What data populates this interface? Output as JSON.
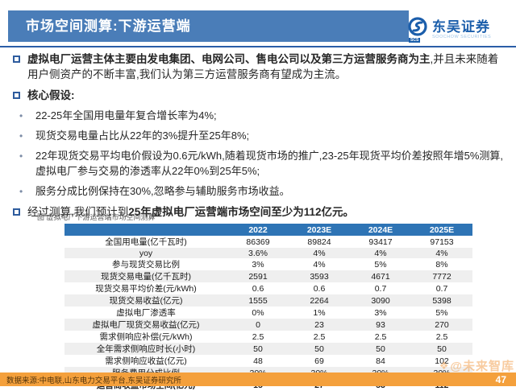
{
  "header": {
    "title": "市场空间测算:下游运营端",
    "logo": {
      "name": "东吴证券",
      "subtitle": "SOOCHOW SECURITIES",
      "badge": "SCS"
    }
  },
  "bullets": {
    "b1_bold": "虚拟电厂运营主体主要由发电集团、电网公司、售电公司以及第三方运营服务商为主",
    "b1_rest": ",并且未来随着用户侧资产的不断丰富,我们认为第三方运营服务商有望成为主流。",
    "b2": "核心假设:",
    "sub": [
      "22-25年全国用电量年复合增长率为4%;",
      "现货交易电量占比从22年的3%提升至25年8%;",
      "22年现货交易平均电价假设为0.6元/kWh,随着现货市场的推广,23-25年现货平均价差按照年增5%测算,虚拟电厂参与交易的渗透率从22年0%到25年5%;",
      "服务分成比例保持在30%,忽略参与辅助服务市场收益。"
    ],
    "b3_plain": "经过测算,我们预计到",
    "b3_bold": "25年虚拟电厂运营端市场空间至少为112亿元。"
  },
  "figure": {
    "caption": "图  虚拟电厂下游运营端市场空间测算"
  },
  "table": {
    "columns": [
      "",
      "2022",
      "2023E",
      "2024E",
      "2025E"
    ],
    "rows": [
      {
        "label": "全国用电量(亿千瓦时)",
        "values": [
          "86369",
          "89824",
          "93417",
          "97153"
        ],
        "bold": false
      },
      {
        "label": "yoy",
        "values": [
          "3.6%",
          "4%",
          "4%",
          "4%"
        ],
        "bold": false
      },
      {
        "label": "参与现货交易比例",
        "values": [
          "3%",
          "4%",
          "5%",
          "8%"
        ],
        "bold": false
      },
      {
        "label": "现货交易电量(亿千瓦时)",
        "values": [
          "2591",
          "3593",
          "4671",
          "7772"
        ],
        "bold": false
      },
      {
        "label": "现货交易平均价差(元/kWh)",
        "values": [
          "0.6",
          "0.6",
          "0.7",
          "0.7"
        ],
        "bold": false
      },
      {
        "label": "现货交易收益(亿元)",
        "values": [
          "1555",
          "2264",
          "3090",
          "5398"
        ],
        "bold": false
      },
      {
        "label": "虚拟电厂渗透率",
        "values": [
          "0%",
          "1%",
          "3%",
          "5%"
        ],
        "bold": false
      },
      {
        "label": "虚拟电厂现货交易收益(亿元)",
        "values": [
          "0",
          "23",
          "93",
          "270"
        ],
        "bold": false
      },
      {
        "label": "需求侧响应补偿(元/kWh)",
        "values": [
          "2.5",
          "2.5",
          "2.5",
          "2.5"
        ],
        "bold": false
      },
      {
        "label": "全年需求侧响应时长(小时)",
        "values": [
          "50",
          "50",
          "50",
          "50"
        ],
        "bold": false
      },
      {
        "label": "需求侧响应收益(亿元)",
        "values": [
          "48",
          "69",
          "84",
          "102"
        ],
        "bold": false
      },
      {
        "label": "服务费用分成比例",
        "values": [
          "30%",
          "30%",
          "30%",
          "30%"
        ],
        "bold": false
      },
      {
        "label": "运营商收益市场空间(亿元)",
        "values": [
          "15",
          "27",
          "53",
          "112"
        ],
        "bold": true
      }
    ]
  },
  "watermark": {
    "icon": "❖",
    "text": "@未来智库"
  },
  "footer": {
    "source": "数据来源:中电联,山东电力交易平台,东吴证券研究所",
    "page": "47"
  },
  "colors": {
    "title_bar": "#4a7db8",
    "divider": "#2b5da7",
    "table_header": "#2e74b5",
    "row_stripe": "#efefef",
    "footer_bar": "#f4a03c",
    "logo_blue": "#1b5eab",
    "watermark": "#f3a251"
  }
}
